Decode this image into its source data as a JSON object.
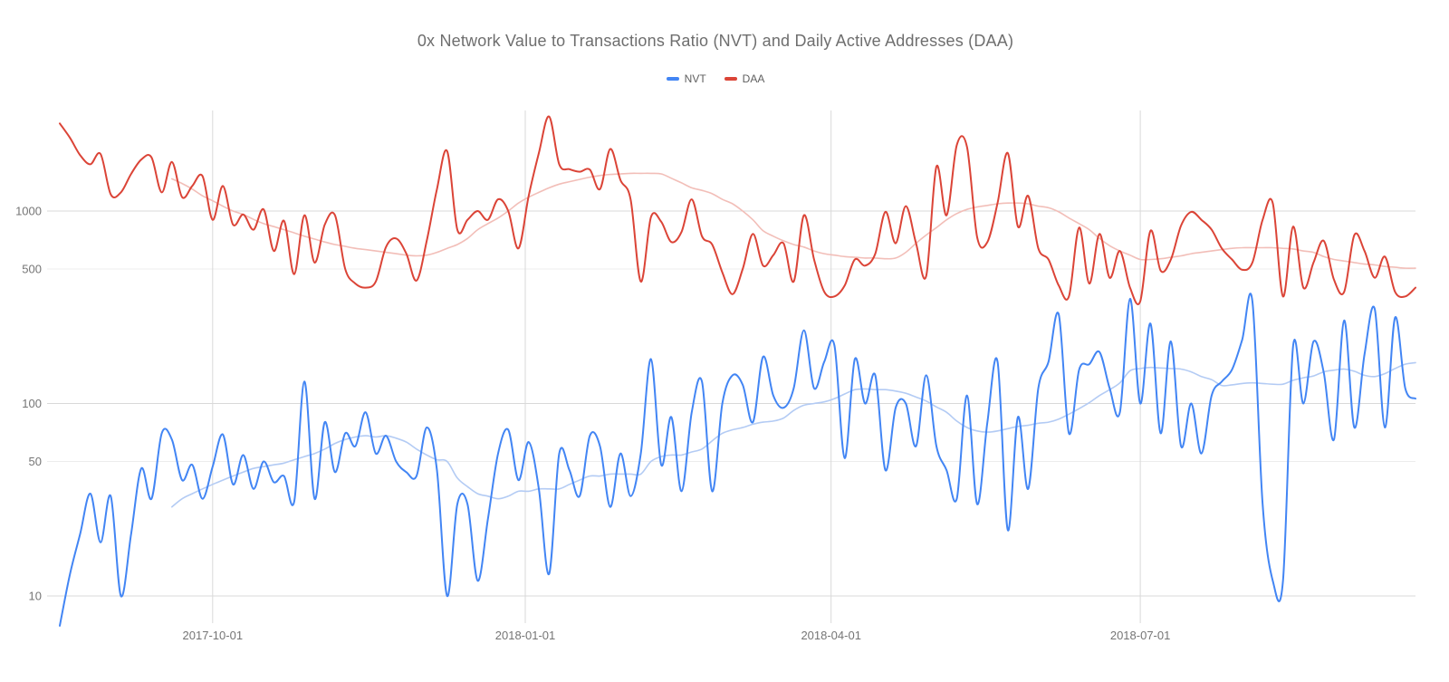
{
  "chart_data": {
    "type": "line",
    "title": "0x Network Value to Transactions Ratio (NVT) and Daily Active Addresses (DAA)",
    "legend_position": "top",
    "grid": true,
    "x_axis": {
      "start_date": "2017-08-17",
      "interval_days": 3,
      "total_days": 399,
      "tick_labels": [
        "2017-10-01",
        "2018-01-01",
        "2018-04-01",
        "2018-07-01"
      ],
      "tick_day_offsets": [
        45,
        137,
        227,
        318
      ]
    },
    "y_axis": {
      "scale": "log",
      "tick_values": [
        10,
        50,
        100,
        500,
        1000
      ],
      "range": [
        7,
        3200
      ]
    },
    "series": [
      {
        "name": "NVT",
        "color": "#4285F4",
        "width": 2,
        "in_legend": true,
        "values": [
          7,
          13,
          21,
          34,
          19,
          33,
          10,
          21,
          46,
          32,
          70,
          65,
          40,
          48,
          32,
          47,
          69,
          38,
          54,
          36,
          50,
          39,
          42,
          31,
          130,
          32,
          80,
          44,
          70,
          60,
          90,
          55,
          68,
          50,
          44,
          42,
          75,
          45,
          10,
          30,
          30,
          12,
          25,
          55,
          73,
          40,
          63,
          36,
          13,
          55,
          45,
          33,
          68,
          60,
          29,
          55,
          33,
          55,
          170,
          48,
          85,
          35,
          90,
          130,
          35,
          100,
          140,
          125,
          80,
          175,
          110,
          95,
          120,
          240,
          120,
          165,
          200,
          52,
          170,
          100,
          140,
          45,
          95,
          100,
          60,
          140,
          60,
          45,
          32,
          110,
          30,
          80,
          165,
          22,
          85,
          36,
          120,
          165,
          290,
          70,
          150,
          160,
          185,
          120,
          90,
          350,
          100,
          260,
          70,
          210,
          60,
          100,
          55,
          110,
          130,
          150,
          215,
          340,
          30,
          12,
          12,
          200,
          100,
          210,
          145,
          65,
          270,
          75,
          180,
          310,
          75,
          280,
          120,
          106
        ]
      },
      {
        "name": "NVT (smoothed)",
        "color": "#B3CBF4",
        "width": 1.6,
        "in_legend": false,
        "values": [
          null,
          null,
          null,
          null,
          null,
          null,
          null,
          null,
          null,
          null,
          null,
          29,
          32,
          34,
          36,
          38,
          40,
          42,
          44,
          46,
          47,
          48,
          49,
          51,
          53,
          55,
          58,
          62,
          65,
          67,
          68,
          67,
          68,
          66,
          63,
          58,
          54,
          51,
          50,
          41,
          37,
          34,
          33,
          32,
          33,
          35,
          35,
          36,
          36,
          36,
          38,
          40,
          42,
          42,
          43,
          43,
          43,
          43,
          50,
          53,
          54,
          54,
          56,
          58,
          64,
          70,
          73,
          75,
          78,
          80,
          81,
          84,
          92,
          98,
          100,
          102,
          106,
          112,
          118,
          119,
          118,
          118,
          116,
          113,
          108,
          103,
          96,
          90,
          81,
          75,
          72,
          71,
          72,
          74,
          76,
          77,
          79,
          80,
          83,
          88,
          94,
          101,
          110,
          118,
          128,
          148,
          152,
          154,
          153,
          152,
          151,
          146,
          138,
          133,
          124,
          125,
          127,
          128,
          127,
          126,
          126,
          132,
          136,
          139,
          146,
          149,
          151,
          147,
          140,
          138,
          143,
          152,
          160,
          163
        ]
      },
      {
        "name": "DAA",
        "color": "#DB4437",
        "width": 2,
        "in_legend": true,
        "values": [
          2850,
          2400,
          1950,
          1750,
          1980,
          1220,
          1250,
          1560,
          1850,
          1900,
          1250,
          1800,
          1180,
          1350,
          1520,
          900,
          1350,
          850,
          960,
          800,
          1020,
          620,
          890,
          470,
          950,
          540,
          850,
          950,
          500,
          420,
          400,
          430,
          650,
          720,
          600,
          435,
          700,
          1300,
          2050,
          800,
          900,
          1000,
          900,
          1150,
          1000,
          640,
          1200,
          2000,
          3100,
          1750,
          1650,
          1600,
          1640,
          1300,
          2100,
          1450,
          1150,
          430,
          930,
          880,
          690,
          780,
          1150,
          740,
          670,
          480,
          370,
          500,
          760,
          520,
          590,
          680,
          430,
          950,
          560,
          380,
          360,
          410,
          560,
          520,
          600,
          990,
          680,
          1060,
          680,
          460,
          1700,
          950,
          2200,
          2150,
          730,
          690,
          1100,
          2000,
          830,
          1200,
          640,
          560,
          410,
          360,
          820,
          420,
          760,
          450,
          620,
          400,
          340,
          790,
          490,
          560,
          840,
          990,
          900,
          800,
          640,
          560,
          495,
          540,
          900,
          1100,
          360,
          830,
          400,
          540,
          700,
          440,
          380,
          750,
          620,
          450,
          580,
          380,
          360,
          400
        ]
      },
      {
        "name": "DAA (smoothed)",
        "color": "#F2BEB8",
        "width": 1.6,
        "in_legend": false,
        "values": [
          null,
          null,
          null,
          null,
          null,
          null,
          null,
          null,
          null,
          null,
          null,
          1470,
          1390,
          1300,
          1200,
          1130,
          1060,
          1000,
          960,
          905,
          860,
          830,
          800,
          770,
          740,
          715,
          690,
          670,
          655,
          640,
          630,
          620,
          610,
          600,
          590,
          585,
          590,
          610,
          640,
          670,
          720,
          800,
          860,
          920,
          1000,
          1100,
          1180,
          1250,
          1320,
          1380,
          1420,
          1460,
          1500,
          1530,
          1550,
          1560,
          1570,
          1570,
          1570,
          1560,
          1480,
          1400,
          1320,
          1280,
          1230,
          1150,
          1090,
          1000,
          900,
          790,
          740,
          700,
          670,
          650,
          620,
          600,
          590,
          580,
          575,
          570,
          570,
          565,
          570,
          610,
          680,
          750,
          820,
          900,
          970,
          1020,
          1050,
          1070,
          1090,
          1100,
          1100,
          1090,
          1060,
          1040,
          990,
          920,
          860,
          800,
          720,
          660,
          620,
          590,
          560,
          560,
          565,
          575,
          585,
          600,
          610,
          620,
          630,
          640,
          645,
          645,
          645,
          645,
          640,
          635,
          620,
          610,
          580,
          560,
          550,
          540,
          530,
          525,
          515,
          510,
          505,
          505
        ]
      }
    ]
  }
}
